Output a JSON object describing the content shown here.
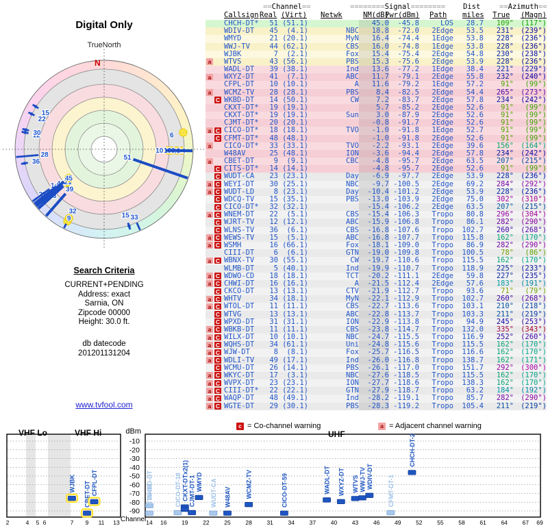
{
  "title": "Digital Only",
  "radar": {
    "true_north_label": "TrueNorth",
    "north_label": "N",
    "highlight_rows": [
      1,
      2,
      5,
      11,
      12,
      13,
      14,
      15,
      18,
      19,
      24,
      30
    ]
  },
  "criteria": {
    "heading": "Search Criteria",
    "lines": [
      "CURRENT+PENDING",
      "Address: exact",
      "Sarnia, ON",
      "Zipcode 00000",
      "Height: 30.0 ft."
    ],
    "db_lines": [
      "db datecode",
      "201201131204"
    ],
    "link": "www.tvfool.com"
  },
  "table": {
    "headers": {
      "ch": "==Channel==",
      "sig": "========Signal========",
      "dist": "Dist",
      "az": "==Azimuth==",
      "callsign": "Callsign",
      "real": "Real",
      "virt": "(Virt)",
      "netwk": "Netwk",
      "nm": "NM(dB)",
      "pwr": "Pwr(dBm)",
      "path": "Path",
      "miles": "miles",
      "true_az": "True",
      "magn": "(Magn)"
    },
    "rows": [
      [
        "",
        "CHCH-DT*",
        51,
        "51.1",
        "",
        45.0,
        -45.8,
        "LOS",
        28.7,
        109,
        117
      ],
      [
        "",
        "WDIV-DT",
        45,
        "4.1",
        "NBC",
        18.8,
        -72.0,
        "2Edge",
        53.5,
        231,
        239
      ],
      [
        "",
        "WMYD",
        21,
        "20.1",
        "MyN",
        16.4,
        -74.4,
        "1Edge",
        53.8,
        228,
        236
      ],
      [
        "",
        "WWJ-TV",
        44,
        "62.1",
        "CBS",
        16.0,
        -74.8,
        "1Edge",
        53.8,
        228,
        236
      ],
      [
        "",
        "WJBK",
        7,
        "2.1",
        "Fox",
        15.4,
        -75.4,
        "2Edge",
        54.8,
        230,
        238
      ],
      [
        "a",
        "WTVS",
        43,
        "56.1",
        "PBS",
        15.3,
        -75.6,
        "2Edge",
        53.9,
        228,
        236
      ],
      [
        "",
        "WADL-DT",
        39,
        "38.1",
        "Ind",
        13.6,
        -77.2,
        "1Edge",
        38.4,
        221,
        229
      ],
      [
        "a",
        "WXYZ-DT",
        41,
        "7.1",
        "ABC",
        11.7,
        -79.1,
        "2Edge",
        55.8,
        232,
        240
      ],
      [
        "",
        "CFPL-DT",
        10,
        "10.1",
        "A",
        11.6,
        -79.2,
        "1Edge",
        57.2,
        91,
        99
      ],
      [
        "a",
        "WCMZ-TV",
        28,
        "28.1",
        "PBS",
        8.4,
        -82.5,
        "2Edge",
        54.4,
        265,
        273
      ],
      [
        "C",
        "WKBD-DT",
        14,
        "50.1",
        "CW",
        7.2,
        -83.7,
        "2Edge",
        57.8,
        234,
        242
      ],
      [
        "",
        "CKXT-DT*",
        19,
        "19.1",
        "",
        5.7,
        -85.2,
        "2Edge",
        52.6,
        91,
        99
      ],
      [
        "",
        "CKXT-DT*",
        19,
        "19.1",
        "Sun",
        3.0,
        -87.9,
        "2Edge",
        52.6,
        91,
        99
      ],
      [
        "",
        "CJMT-DT*",
        20,
        "20.1",
        "",
        -0.8,
        -91.7,
        "2Edge",
        52.6,
        91,
        99
      ],
      [
        "aC",
        "CICO-DT*",
        18,
        "18.1",
        "TVO",
        -1.0,
        -91.8,
        "1Edge",
        52.7,
        91,
        99
      ],
      [
        "C",
        "CFMT-DT*",
        48,
        "48.1",
        "",
        -1.0,
        -91.8,
        "2Edge",
        52.6,
        91,
        99
      ],
      [
        "a",
        "CICO-DT*",
        33,
        "33.1",
        "TVO",
        -2.2,
        -93.1,
        "2Edge",
        39.6,
        156,
        164
      ],
      [
        "",
        "W48AV",
        25,
        "48.1",
        "ION",
        -3.6,
        -94.4,
        "2Edge",
        57.8,
        234,
        242
      ],
      [
        "a",
        "CBET-DT",
        9,
        "9.1",
        "CBC",
        -4.8,
        -95.7,
        "2Edge",
        63.5,
        207,
        215
      ],
      [
        "C",
        "CITS-DT*",
        14,
        "14.1",
        "",
        -4.8,
        -95.7,
        "2Edge",
        52.6,
        91,
        99
      ],
      [
        "C",
        "WUDT-CA",
        23,
        "23.1",
        "Day",
        -6.9,
        -97.7,
        "2Edge",
        53.9,
        228,
        236
      ],
      [
        "aC",
        "WEYI-DT",
        30,
        "25.1",
        "NBC",
        -9.7,
        -100.5,
        "2Edge",
        69.2,
        284,
        292
      ],
      [
        "aC",
        "WUDT-LD",
        8,
        "23.1",
        "Day",
        -10.4,
        -101.2,
        "2Edge",
        53.9,
        228,
        236
      ],
      [
        "C",
        "WDCQ-TV",
        15,
        "35.1",
        "PBS",
        -13.0,
        -103.9,
        "2Edge",
        75.0,
        302,
        310
      ],
      [
        "C",
        "CICO-DT*",
        32,
        "32.1",
        "",
        -15.4,
        -106.2,
        "2Edge",
        63.5,
        207,
        215
      ],
      [
        "aC",
        "WNEM-DT",
        22,
        "5.1",
        "CBS",
        -15.4,
        -106.3,
        "Tropo",
        80.8,
        296,
        304
      ],
      [
        "C",
        "WJRT-TV",
        12,
        "12.1",
        "ABC",
        -15.9,
        -106.8,
        "Tropo",
        86.1,
        282,
        290
      ],
      [
        "C",
        "WLNS-TV",
        36,
        "6.1",
        "CBS",
        -16.8,
        -107.6,
        "Tropo",
        102.7,
        260,
        268
      ],
      [
        "aC",
        "WEWS-TV",
        15,
        "5.1",
        "ABC",
        -16.8,
        -107.7,
        "Tropo",
        115.8,
        162,
        170
      ],
      [
        "aC",
        "WSMH",
        16,
        "66.1",
        "Fox",
        -18.1,
        -109.0,
        "Tropo",
        86.9,
        282,
        290
      ],
      [
        "",
        "CIII-DT",
        6,
        "6.1",
        "GTN",
        -19.0,
        -109.8,
        "Tropo",
        100.5,
        78,
        86
      ],
      [
        "aC",
        "WBNX-TV",
        30,
        "55.1",
        "CW",
        -19.7,
        -110.6,
        "Tropo",
        115.5,
        162,
        170
      ],
      [
        "",
        "WLMB-DT",
        5,
        "40.1",
        "Ind",
        -19.9,
        -110.7,
        "Tropo",
        118.9,
        225,
        233
      ],
      [
        "aC",
        "WDWO-CD",
        18,
        "18.1",
        "TCT",
        -20.2,
        -111.1,
        "2Edge",
        59.8,
        227,
        235
      ],
      [
        "aC",
        "CHWI-DT",
        16,
        "16.1",
        "A",
        -21.5,
        -112.4,
        "2Edge",
        57.6,
        183,
        191
      ],
      [
        "C",
        "CKCO-DT",
        13,
        "13.1",
        "CTV",
        -21.9,
        -112.7,
        "Tropo",
        93.6,
        71,
        79
      ],
      [
        "aC",
        "WHTV",
        34,
        "18.1",
        "MyN",
        -22.1,
        -112.9,
        "Tropo",
        102.7,
        260,
        268
      ],
      [
        "aC",
        "WTOL-DT",
        11,
        "11.1",
        "CBS",
        -22.7,
        -113.6,
        "Tropo",
        103.1,
        210,
        218
      ],
      [
        "C",
        "WTVG",
        13,
        "13.1",
        "ABC",
        -22.8,
        -113.7,
        "Tropo",
        103.3,
        211,
        219
      ],
      [
        "C",
        "WPXD-DT",
        31,
        "31.1",
        "ION",
        -22.9,
        -113.8,
        "Tropo",
        94.9,
        245,
        253
      ],
      [
        "aC",
        "WBKB-DT",
        11,
        "11.1",
        "CBS",
        -23.8,
        -114.7,
        "Tropo",
        132.0,
        335,
        343
      ],
      [
        "aC",
        "WILX-DT",
        10,
        "10.1",
        "NBC",
        -24.7,
        -115.5,
        "Tropo",
        116.9,
        252,
        260
      ],
      [
        "aC",
        "WQHS-DT",
        34,
        "61.1",
        "Uni",
        -24.8,
        -115.6,
        "Tropo",
        115.5,
        162,
        170
      ],
      [
        "aC",
        "WJW-DT",
        8,
        "8.1",
        "Fox",
        -25.7,
        -116.5,
        "Tropo",
        116.6,
        162,
        170
      ],
      [
        "aC",
        "WDLI-TV",
        49,
        "17.1",
        "Ind",
        -26.0,
        -116.8,
        "Tropo",
        138.7,
        162,
        171
      ],
      [
        "C",
        "WCMU-DT",
        26,
        "14.1",
        "PBS",
        -26.1,
        -117.0,
        "Tropo",
        151.7,
        292,
        300
      ],
      [
        "aC",
        "WKYC-DT",
        17,
        "3.1",
        "NBC",
        -27.6,
        -118.5,
        "Tropo",
        115.5,
        162,
        170
      ],
      [
        "aC",
        "WVPX-DT",
        23,
        "23.1",
        "ION",
        -27.7,
        -118.6,
        "Tropo",
        138.3,
        162,
        170
      ],
      [
        "aC",
        "CIII-DT*",
        22,
        "22.1",
        "GTN",
        -27.9,
        -118.7,
        "Tropo",
        63.2,
        184,
        192
      ],
      [
        "aC",
        "WAQP-DT",
        48,
        "49.1",
        "Ind",
        -28.2,
        -119.1,
        "Tropo",
        85.7,
        282,
        290
      ],
      [
        "aC",
        "WGTE-DT",
        29,
        "30.1",
        "PBS",
        -28.3,
        -119.2,
        "Tropo",
        105.4,
        211,
        219
      ]
    ]
  },
  "legend": {
    "co": {
      "symbol": "c",
      "text": "= Co-channel warning"
    },
    "adj": {
      "symbol": "a",
      "text": "= Adjacent channel warning"
    }
  },
  "spectrum": {
    "vhf_lo": "VHF Lo",
    "vhf_hi": "VHF Hi",
    "uhf": "UHF",
    "dbm": "dBm",
    "channel": "Channel",
    "dbm_ticks": [
      -10,
      -20,
      -30,
      -40,
      -50,
      -60,
      -70,
      -80,
      -90
    ],
    "vhf_ticks": [
      2,
      4,
      5,
      6,
      7,
      9,
      11,
      13
    ],
    "uhf_ticks": [
      14,
      16,
      19,
      22,
      25,
      28,
      31,
      34,
      37,
      40,
      43,
      46,
      49,
      52,
      55,
      58,
      61,
      64,
      67,
      69
    ],
    "vhf_bars": [
      {
        "ch": 7,
        "pwr": -75.4,
        "label": "WJBK",
        "light": false,
        "outline": true
      },
      {
        "ch": 9,
        "pwr": -95.7,
        "label": "CBET-DT",
        "light": false,
        "outline": true
      },
      {
        "ch": 10,
        "pwr": -79.2,
        "label": "CFPL-DT",
        "light": false,
        "outline": true
      }
    ],
    "uhf_bars": [
      {
        "ch": 14,
        "pwr": -83.7,
        "label": "WKBD-DT",
        "light": true,
        "outline": false
      },
      {
        "ch": 14,
        "pwr": -95.7,
        "label": "CITS-DT",
        "light": true,
        "outline": false
      },
      {
        "ch": 18,
        "pwr": -91.8,
        "label": "CICO-DT-18",
        "light": true,
        "outline": false
      },
      {
        "ch": 19,
        "pwr": -85.2,
        "label": "CKXT-DTx2(1)",
        "light": false,
        "outline": false
      },
      {
        "ch": 19,
        "pwr": -87.9,
        "label": "",
        "light": false,
        "outline": false
      },
      {
        "ch": 20,
        "pwr": -91.7,
        "label": "CJMT-DT-1",
        "light": false,
        "outline": false
      },
      {
        "ch": 21,
        "pwr": -74.4,
        "label": "WMYD",
        "light": false,
        "outline": false
      },
      {
        "ch": 23,
        "pwr": -97.7,
        "label": "WUDT-CA",
        "light": true,
        "outline": false
      },
      {
        "ch": 25,
        "pwr": -94.4,
        "label": "W48AV",
        "light": false,
        "outline": false
      },
      {
        "ch": 28,
        "pwr": -82.5,
        "label": "WCMZ-TV",
        "light": false,
        "outline": false
      },
      {
        "ch": 33,
        "pwr": -93.1,
        "label": "CICO-DT-59",
        "light": false,
        "outline": false
      },
      {
        "ch": 39,
        "pwr": -77.2,
        "label": "WADL-DT",
        "light": false,
        "outline": false
      },
      {
        "ch": 41,
        "pwr": -79.1,
        "label": "WXYZ-DT",
        "light": false,
        "outline": false
      },
      {
        "ch": 43,
        "pwr": -75.6,
        "label": "WTVS",
        "light": false,
        "outline": false
      },
      {
        "ch": 44,
        "pwr": -74.8,
        "label": "WWJ-TV",
        "light": false,
        "outline": false
      },
      {
        "ch": 45,
        "pwr": -72.0,
        "label": "WDIV-DT",
        "light": false,
        "outline": false
      },
      {
        "ch": 48,
        "pwr": -91.8,
        "label": "CFMT-DT-1",
        "light": true,
        "outline": false
      },
      {
        "ch": 51,
        "pwr": -45.8,
        "label": "CHCH-DT-2",
        "light": false,
        "outline": false
      }
    ]
  },
  "colors": {
    "accent_blue": "#1c50c8",
    "bar_dark": "#1f55c2",
    "bar_light": "#a9c8ec",
    "highlight_yellow": "#ffe93e",
    "warn_red": "#cc1111",
    "warn_pink": "#f2a3a3",
    "tier_green": "#d6f6d0",
    "tier_yellow": "#fdf9e0",
    "tier_pink": "#f9dbdf",
    "tier_gray": "#eaeaea"
  }
}
